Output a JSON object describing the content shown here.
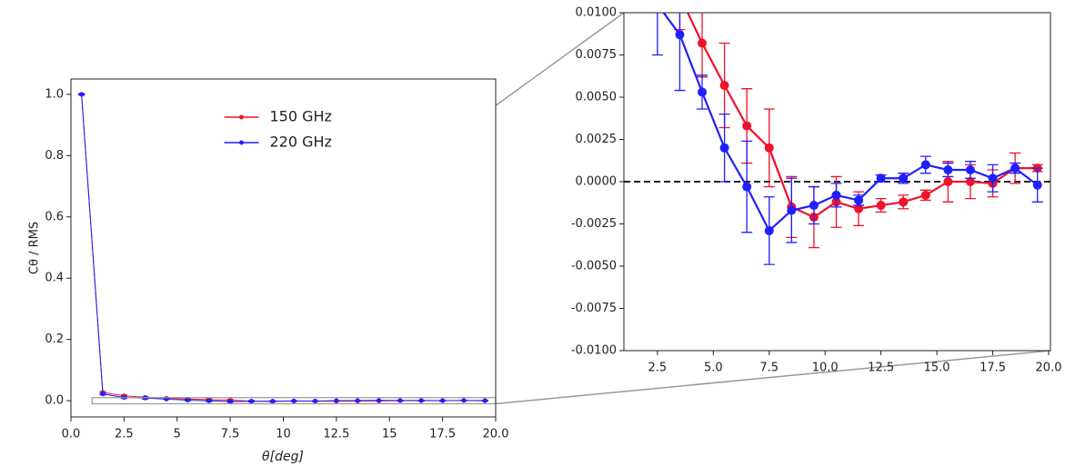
{
  "chart_data": [
    {
      "type": "errorbar",
      "xlabel": "θ[deg]",
      "ylabel": "Cθ / RMS",
      "x": [
        0.5,
        1.5,
        2.5,
        3.5,
        4.5,
        5.5,
        6.5,
        7.5,
        8.5,
        9.5,
        10.5,
        11.5,
        12.5,
        13.5,
        14.5,
        15.5,
        16.5,
        17.5,
        18.5,
        19.5
      ],
      "series": [
        {
          "name": "150 GHz",
          "color": "#f0112b",
          "values": [
            1.0,
            0.027,
            0.016,
            0.011,
            0.0082,
            0.0057,
            0.0033,
            0.002,
            -0.0015,
            -0.0021,
            -0.0012,
            -0.0016,
            -0.0014,
            -0.0012,
            -0.0008,
            0.0,
            0.0,
            -0.0001,
            0.0008,
            0.0008
          ],
          "errors": [
            0.002,
            0.003,
            0.003,
            0.002,
            0.002,
            0.0025,
            0.0022,
            0.0023,
            0.0018,
            0.0018,
            0.0015,
            0.001,
            0.0004,
            0.0004,
            0.0003,
            0.0012,
            0.001,
            0.0008,
            0.0009,
            0.0002
          ]
        },
        {
          "name": "220 GHz",
          "color": "#1f1fff",
          "values": [
            1.0,
            0.022,
            0.0105,
            0.0087,
            0.0053,
            0.002,
            -0.0003,
            -0.0029,
            -0.0017,
            -0.0014,
            -0.0008,
            -0.0011,
            0.0002,
            0.0002,
            0.001,
            0.0007,
            0.0007,
            0.0002,
            0.0008,
            -0.0002
          ],
          "errors": [
            0.002,
            0.003,
            0.003,
            0.0033,
            0.001,
            0.002,
            0.0027,
            0.002,
            0.0019,
            0.0011,
            0.0007,
            0.0003,
            0.0002,
            0.0003,
            0.0005,
            0.0004,
            0.0005,
            0.0008,
            0.0003,
            0.001
          ]
        }
      ],
      "xlim": [
        0,
        20
      ],
      "ylim": [
        -0.053,
        1.05
      ],
      "xticks": [
        {
          "value": 0,
          "label": "0.0"
        },
        2.5,
        5,
        7.5,
        10,
        12.5,
        15,
        17.5,
        {
          "value": 20,
          "label": "20.0"
        }
      ],
      "yticks": [
        {
          "value": 0,
          "label": "0.0"
        },
        0.2,
        0.4,
        0.6,
        0.8,
        {
          "value": 1,
          "label": "1.0"
        }
      ],
      "legend": "upper center"
    },
    {
      "type": "zoom",
      "xlim": [
        1.0,
        20.0
      ],
      "ylim": [
        -0.01,
        0.01
      ],
      "xticks": [
        2.5,
        {
          "value": 5,
          "label": "5.0"
        },
        7.5,
        {
          "value": 10,
          "label": "10.0"
        },
        12.5,
        {
          "value": 15,
          "label": "15.0"
        },
        17.5,
        {
          "value": 20,
          "label": "20.0"
        }
      ],
      "yticks": [
        {
          "value": -0.01,
          "label": "-0.0100"
        },
        {
          "value": -0.0075,
          "label": "-0.0075"
        },
        {
          "value": -0.005,
          "label": "-0.0050"
        },
        {
          "value": -0.0025,
          "label": "-0.0025"
        },
        {
          "value": 0,
          "label": "0.0000"
        },
        {
          "value": 0.0025,
          "label": "0.0025"
        },
        {
          "value": 0.005,
          "label": "0.0050"
        },
        {
          "value": 0.0075,
          "label": "0.0075"
        },
        {
          "value": 0.01,
          "label": "0.0100"
        }
      ],
      "hline": 0
    }
  ]
}
